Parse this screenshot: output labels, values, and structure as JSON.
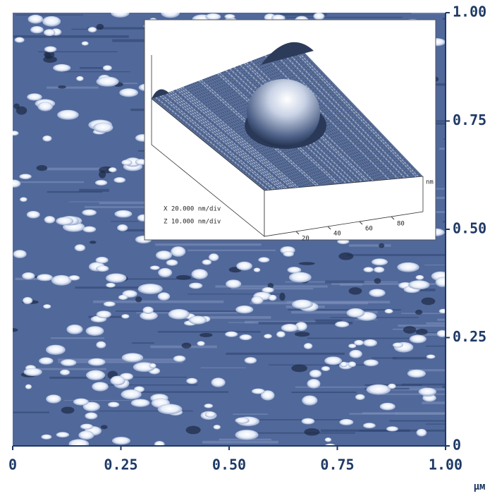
{
  "chart_data": {
    "type": "afm-image",
    "xlim": [
      0,
      1
    ],
    "ylim": [
      0,
      1
    ],
    "xticks": [
      0,
      0.25,
      {
        "value": 0.5,
        "label": "0.50"
      },
      0.75,
      {
        "value": 1,
        "label": "1.00"
      }
    ],
    "yticks": [
      0,
      0.25,
      {
        "value": 0.5,
        "label": "0.50"
      },
      0.75,
      {
        "value": 1,
        "label": "1.00"
      }
    ],
    "x_unit": "μм",
    "inset": {
      "scale_labels": [
        "X 20.000 nm/div",
        "Z 10.000 nm/div"
      ],
      "xticks": [
        20,
        40,
        60,
        80
      ],
      "x_unit": "nm"
    }
  }
}
